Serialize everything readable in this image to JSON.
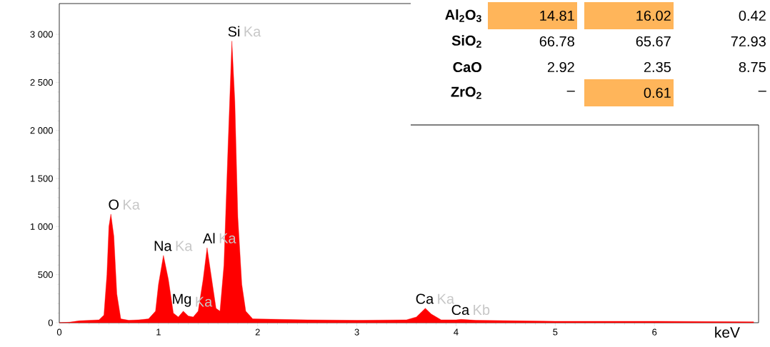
{
  "chart_data": {
    "type": "area",
    "xlabel": "keV",
    "x": [
      0.0,
      0.1,
      0.2,
      0.3,
      0.4,
      0.45,
      0.48,
      0.5,
      0.52,
      0.55,
      0.58,
      0.62,
      0.7,
      0.8,
      0.9,
      0.97,
      1.0,
      1.05,
      1.1,
      1.15,
      1.2,
      1.25,
      1.3,
      1.35,
      1.4,
      1.45,
      1.49,
      1.53,
      1.58,
      1.62,
      1.66,
      1.7,
      1.74,
      1.77,
      1.8,
      1.84,
      1.88,
      1.95,
      2.5,
      3.0,
      3.5,
      3.6,
      3.69,
      3.75,
      3.85,
      4.0,
      4.05,
      4.2,
      5.0,
      6.0,
      7.0
    ],
    "series": [
      {
        "color": "#ff0000",
        "values": [
          0,
          5,
          20,
          25,
          30,
          80,
          500,
          1000,
          1130,
          900,
          300,
          40,
          25,
          30,
          40,
          120,
          400,
          700,
          450,
          100,
          60,
          120,
          70,
          60,
          120,
          450,
          780,
          500,
          150,
          120,
          600,
          1800,
          2930,
          2300,
          1100,
          400,
          120,
          40,
          30,
          25,
          30,
          60,
          150,
          90,
          30,
          30,
          35,
          25,
          15,
          15,
          10
        ]
      }
    ],
    "xlim": [
      0,
      7.05
    ],
    "ylim": [
      0,
      3320
    ],
    "xticks": [
      0,
      1,
      2,
      3,
      4,
      5,
      6
    ],
    "yticks": [
      0,
      500,
      {
        "value": 1000,
        "label": "1 000"
      },
      {
        "value": 1500,
        "label": "1 500"
      },
      {
        "value": 2000,
        "label": "2 000"
      },
      {
        "value": 2500,
        "label": "2 500"
      },
      {
        "value": 3000,
        "label": "3 000"
      }
    ],
    "grid": false,
    "annotations": [
      {
        "text": "O",
        "x": 0.52,
        "y": 1130
      },
      {
        "text": "Ka",
        "x": 0.52,
        "y": 1130
      },
      {
        "text": "Na",
        "x": 1.05,
        "y": 700
      },
      {
        "text": "Ka",
        "x": 1.05,
        "y": 700
      },
      {
        "text": "Mg",
        "x": 1.25,
        "y": 120
      },
      {
        "text": "Ka",
        "x": 1.25,
        "y": 120
      },
      {
        "text": "Al",
        "x": 1.49,
        "y": 780
      },
      {
        "text": "Ka",
        "x": 1.49,
        "y": 780
      },
      {
        "text": "Si",
        "x": 1.74,
        "y": 2930
      },
      {
        "text": "Ka",
        "x": 1.74,
        "y": 2930
      },
      {
        "text": "Ca",
        "x": 3.69,
        "y": 150
      },
      {
        "text": "Ka",
        "x": 3.69,
        "y": 150
      },
      {
        "text": "Ca",
        "x": 4.05,
        "y": 35
      },
      {
        "text": "Kb",
        "x": 4.05,
        "y": 35
      },
      "Al$_{2}$O$_{3}$",
      "14.81",
      "16.02",
      "0.42",
      "SiO$_{2}$",
      "66.78",
      "65.67",
      "72.93",
      "CaO",
      "2.92",
      "2.35",
      "8.75",
      "ZrO$_{2}$",
      "–",
      "0.61",
      "–"
    ]
  }
}
